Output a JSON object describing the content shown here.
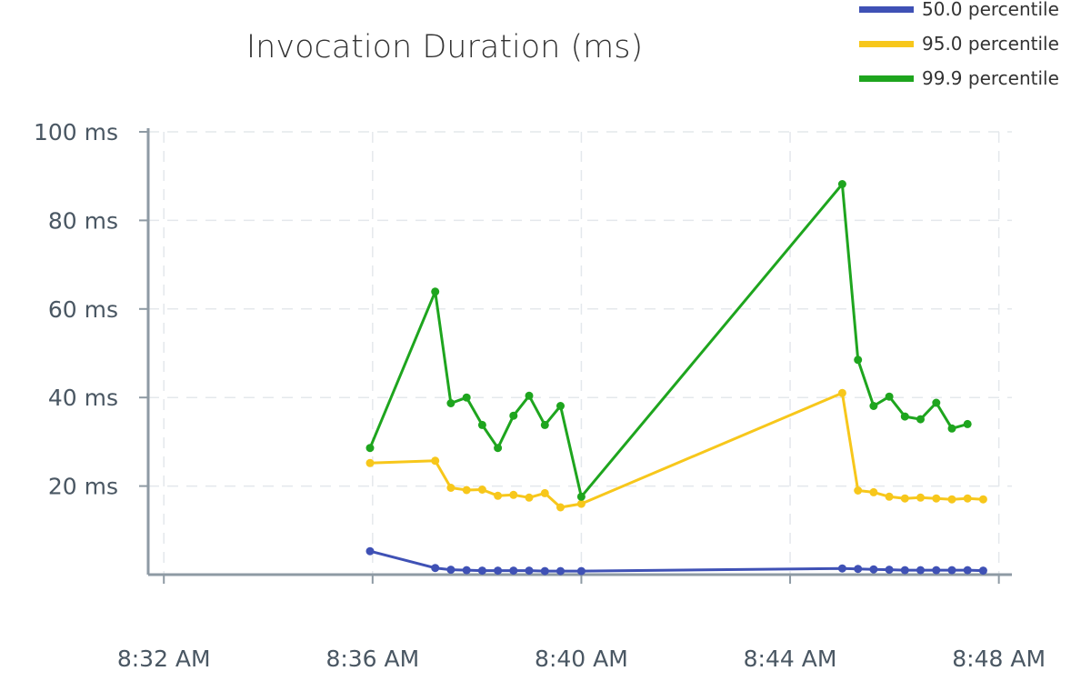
{
  "chart_data": {
    "type": "line",
    "title": "Invocation Duration (ms)",
    "xlabel": "",
    "ylabel": "",
    "x_ticks": [
      {
        "minute": 0,
        "label": "8:32 AM"
      },
      {
        "minute": 4,
        "label": "8:36 AM"
      },
      {
        "minute": 8,
        "label": "8:40 AM"
      },
      {
        "minute": 12,
        "label": "8:44 AM"
      },
      {
        "minute": 16,
        "label": "8:48 AM"
      }
    ],
    "xlim": [
      -0.3,
      16.25
    ],
    "y_ticks": [
      {
        "value": 20,
        "label": "20 ms"
      },
      {
        "value": 40,
        "label": "40 ms"
      },
      {
        "value": 60,
        "label": "60 ms"
      },
      {
        "value": 80,
        "label": "80 ms"
      },
      {
        "value": 100,
        "label": "100 ms"
      }
    ],
    "ylim": [
      0,
      100
    ],
    "x_unit": "minutes after 8:32 AM",
    "grid": true,
    "legend_position": "top-right",
    "x": [
      3.95,
      5.2,
      5.5,
      5.8,
      6.1,
      6.4,
      6.7,
      7.0,
      7.3,
      7.6,
      8.0,
      13.0,
      13.3,
      13.6,
      13.9,
      14.2,
      14.5,
      14.8,
      15.1,
      15.4,
      15.7
    ],
    "series": [
      {
        "name": "50.0 percentile",
        "color": "#3f51b5",
        "values": [
          5.3,
          1.5,
          1.1,
          1.0,
          0.9,
          0.9,
          0.9,
          0.9,
          0.8,
          0.8,
          0.8,
          1.4,
          1.3,
          1.2,
          1.1,
          1.0,
          1.0,
          1.0,
          1.0,
          1.0,
          0.9
        ]
      },
      {
        "name": "95.0 percentile",
        "color": "#f7c71b",
        "values": [
          25.2,
          25.7,
          19.6,
          19.1,
          19.2,
          17.8,
          18.0,
          17.4,
          18.4,
          15.2,
          16.0,
          41.0,
          19.0,
          18.6,
          17.6,
          17.2,
          17.4,
          17.2,
          17.0,
          17.2,
          17.0
        ]
      },
      {
        "name": "99.9 percentile",
        "color": "#1ea51e",
        "values": [
          28.6,
          63.9,
          38.7,
          40.0,
          33.8,
          28.6,
          35.9,
          40.4,
          33.8,
          38.1,
          17.6,
          88.2,
          48.5,
          38.1,
          40.2,
          35.7,
          35.1,
          38.8,
          33.0,
          34.0,
          null
        ]
      }
    ]
  }
}
